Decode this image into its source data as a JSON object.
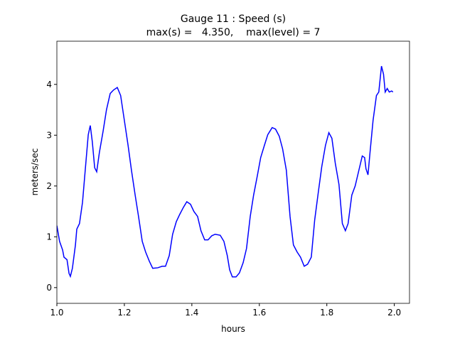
{
  "chart_data": {
    "type": "line",
    "title": "Gauge 11 : Speed (s)",
    "subtitle": "max(s) =   4.350,    max(level) = 7",
    "xlabel": "hours",
    "ylabel": "meters/sec",
    "xlim": [
      1.0,
      2.045
    ],
    "ylim": [
      -0.31,
      4.85
    ],
    "xticks": [
      {
        "value": 1.0,
        "label": "1.0"
      },
      1.2,
      1.4,
      1.6,
      1.8,
      {
        "value": 2.0,
        "label": "2.0"
      }
    ],
    "yticks": [
      0,
      1,
      2,
      3,
      4
    ],
    "series": [
      {
        "name": "Speed",
        "color": "#0000ff",
        "x": [
          1.0,
          1.008,
          1.017,
          1.021,
          1.03,
          1.036,
          1.04,
          1.046,
          1.055,
          1.059,
          1.067,
          1.076,
          1.084,
          1.093,
          1.099,
          1.105,
          1.112,
          1.118,
          1.126,
          1.137,
          1.147,
          1.158,
          1.168,
          1.179,
          1.189,
          1.2,
          1.211,
          1.221,
          1.232,
          1.242,
          1.253,
          1.263,
          1.274,
          1.284,
          1.299,
          1.312,
          1.322,
          1.333,
          1.343,
          1.354,
          1.364,
          1.375,
          1.385,
          1.396,
          1.406,
          1.417,
          1.427,
          1.438,
          1.448,
          1.459,
          1.469,
          1.484,
          1.495,
          1.505,
          1.512,
          1.52,
          1.531,
          1.541,
          1.552,
          1.562,
          1.573,
          1.583,
          1.594,
          1.604,
          1.615,
          1.625,
          1.638,
          1.648,
          1.659,
          1.669,
          1.68,
          1.691,
          1.701,
          1.712,
          1.722,
          1.733,
          1.743,
          1.754,
          1.764,
          1.775,
          1.785,
          1.796,
          1.806,
          1.815,
          1.825,
          1.836,
          1.846,
          1.855,
          1.863,
          1.874,
          1.884,
          1.895,
          1.905,
          1.912,
          1.916,
          1.922,
          1.928,
          1.937,
          1.947,
          1.954,
          1.962,
          1.968,
          1.973,
          1.979,
          1.985,
          1.992,
          1.996
        ],
        "values": [
          1.22,
          0.91,
          0.74,
          0.6,
          0.55,
          0.28,
          0.22,
          0.38,
          0.84,
          1.15,
          1.26,
          1.68,
          2.31,
          3.01,
          3.19,
          2.87,
          2.36,
          2.28,
          2.66,
          3.08,
          3.5,
          3.82,
          3.89,
          3.94,
          3.78,
          3.29,
          2.8,
          2.31,
          1.82,
          1.4,
          0.91,
          0.7,
          0.52,
          0.38,
          0.39,
          0.42,
          0.42,
          0.63,
          1.05,
          1.3,
          1.44,
          1.58,
          1.69,
          1.64,
          1.5,
          1.4,
          1.12,
          0.94,
          0.94,
          1.02,
          1.05,
          1.03,
          0.91,
          0.63,
          0.35,
          0.21,
          0.21,
          0.29,
          0.49,
          0.77,
          1.4,
          1.82,
          2.2,
          2.56,
          2.8,
          3.01,
          3.15,
          3.12,
          2.98,
          2.73,
          2.31,
          1.4,
          0.84,
          0.7,
          0.6,
          0.42,
          0.46,
          0.6,
          1.33,
          1.89,
          2.38,
          2.8,
          3.05,
          2.94,
          2.45,
          2.03,
          1.26,
          1.12,
          1.26,
          1.82,
          2.0,
          2.31,
          2.59,
          2.56,
          2.34,
          2.22,
          2.66,
          3.29,
          3.78,
          3.85,
          4.36,
          4.2,
          3.85,
          3.92,
          3.85,
          3.87,
          3.85
        ]
      }
    ]
  }
}
